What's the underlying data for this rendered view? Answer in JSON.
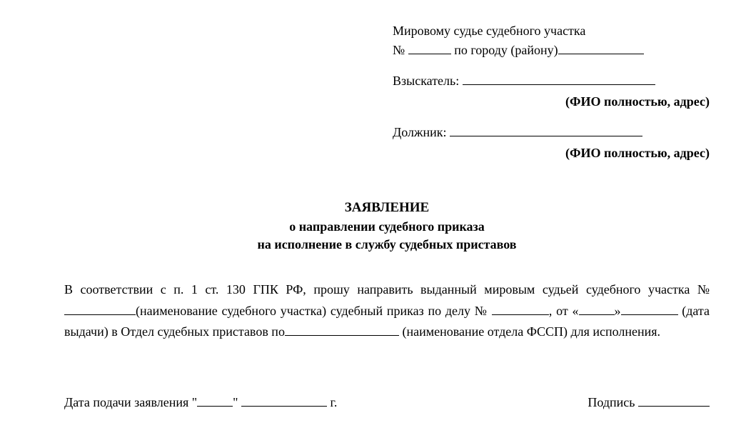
{
  "header": {
    "line1_pre": "Мировому судье судебного участка",
    "line2_pre": "№",
    "line2_post": "по городу (району)"
  },
  "claimant": {
    "label": "Взыскатель:",
    "sub": "(ФИО полностью, адрес)"
  },
  "debtor": {
    "label": "Должник:",
    "sub": "(ФИО полностью, адрес)"
  },
  "title": {
    "t1": "ЗАЯВЛЕНИЕ",
    "t2": "о направлении судебного приказа",
    "t3": "на исполнение в службу судебных приставов"
  },
  "body": {
    "p1": "В соответствии с п. 1 ст. 130 ГПК РФ, прошу направить выданный мировым судьей судебного участка №",
    "p2": "(наименование судебного участка) судебный приказ по делу №",
    "p3": ", от «",
    "p4": "»",
    "p5": "(дата выдачи) в Отдел судебных приставов по",
    "p6": "(наименование отдела ФССП) для исполнения."
  },
  "footer": {
    "date_label": "Дата подачи заявления \"",
    "date_mid": "\"",
    "date_end": "г.",
    "sign_label": "Подпись"
  }
}
